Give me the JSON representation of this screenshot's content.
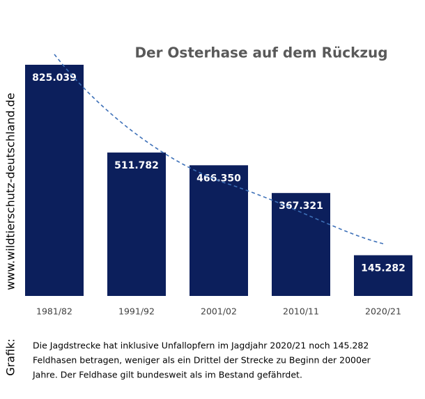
{
  "chart_data": {
    "type": "bar",
    "title": "Der Osterhase auf dem Rückzug",
    "categories": [
      "1981/82",
      "1991/92",
      "2001/02",
      "2010/11",
      "2020/21"
    ],
    "values": [
      825039,
      511782,
      466350,
      367321,
      145282
    ],
    "value_labels": [
      "825.039",
      "511.782",
      "466.350",
      "367.321",
      "145.282"
    ],
    "color": "#0c1f5c",
    "source": "www.wildtierschutz-deutschland.de",
    "caption_label": "Grafik:",
    "caption": [
      "Die Jagdstrecke hat inklusive Unfallopfern im Jagdjahr 2020/21 noch 145.282",
      "Feldhasen betragen,  weniger als ein Drittel der Strecke zu Beginn der 2000er",
      "Jahre. Der Feldhase gilt bundesweit als im Bestand gefährdet."
    ]
  }
}
